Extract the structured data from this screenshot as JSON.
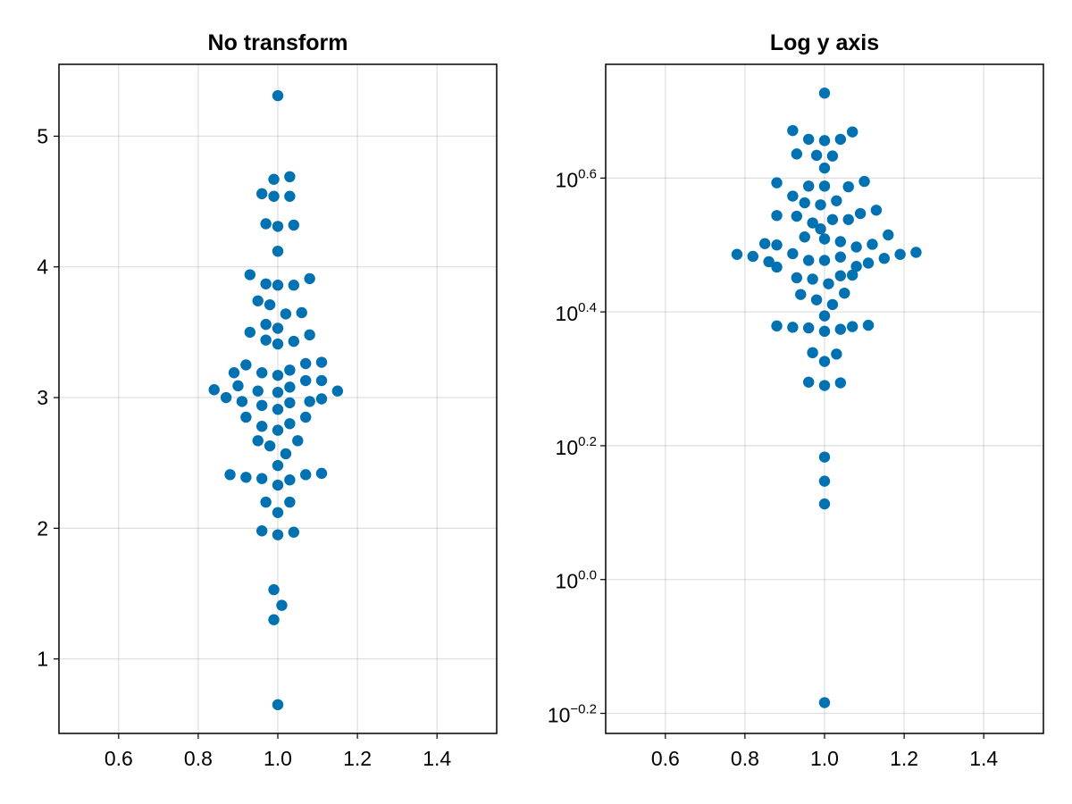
{
  "chart_data": [
    {
      "type": "scatter",
      "title": "No transform",
      "xlabel": "",
      "ylabel": "",
      "yscale": "linear",
      "xlim": [
        0.45,
        1.55
      ],
      "ylim": [
        0.43,
        5.55
      ],
      "xticks": [
        0.6,
        0.8,
        1.0,
        1.2,
        1.4
      ],
      "xtick_labels": [
        "0.6",
        "0.8",
        "1.0",
        "1.2",
        "1.4"
      ],
      "yticks": [
        1,
        2,
        3,
        4,
        5
      ],
      "ytick_labels": [
        "1",
        "2",
        "3",
        "4",
        "5"
      ],
      "grid": true,
      "marker_color": "#0072B2",
      "points": [
        [
          1.0,
          5.31
        ],
        [
          0.99,
          4.67
        ],
        [
          1.03,
          4.69
        ],
        [
          0.96,
          4.56
        ],
        [
          0.99,
          4.54
        ],
        [
          1.03,
          4.54
        ],
        [
          0.97,
          4.33
        ],
        [
          1.0,
          4.31
        ],
        [
          1.04,
          4.32
        ],
        [
          1.0,
          4.12
        ],
        [
          0.93,
          3.94
        ],
        [
          0.97,
          3.87
        ],
        [
          1.0,
          3.86
        ],
        [
          1.04,
          3.86
        ],
        [
          1.08,
          3.91
        ],
        [
          0.95,
          3.74
        ],
        [
          0.98,
          3.71
        ],
        [
          1.02,
          3.64
        ],
        [
          1.06,
          3.65
        ],
        [
          0.97,
          3.56
        ],
        [
          1.0,
          3.53
        ],
        [
          0.93,
          3.5
        ],
        [
          0.97,
          3.44
        ],
        [
          1.0,
          3.41
        ],
        [
          1.04,
          3.43
        ],
        [
          1.08,
          3.48
        ],
        [
          0.92,
          3.25
        ],
        [
          0.89,
          3.19
        ],
        [
          0.96,
          3.19
        ],
        [
          1.0,
          3.17
        ],
        [
          1.03,
          3.21
        ],
        [
          1.07,
          3.26
        ],
        [
          1.11,
          3.27
        ],
        [
          0.9,
          3.09
        ],
        [
          0.95,
          3.05
        ],
        [
          1.0,
          3.04
        ],
        [
          1.03,
          3.08
        ],
        [
          1.07,
          3.13
        ],
        [
          1.11,
          3.13
        ],
        [
          0.84,
          3.06
        ],
        [
          0.87,
          3.0
        ],
        [
          0.91,
          2.97
        ],
        [
          0.96,
          2.94
        ],
        [
          1.0,
          2.91
        ],
        [
          1.03,
          2.96
        ],
        [
          1.08,
          2.97
        ],
        [
          1.11,
          2.99
        ],
        [
          1.15,
          3.05
        ],
        [
          0.92,
          2.85
        ],
        [
          0.96,
          2.78
        ],
        [
          1.0,
          2.75
        ],
        [
          1.03,
          2.8
        ],
        [
          1.07,
          2.85
        ],
        [
          0.95,
          2.67
        ],
        [
          0.98,
          2.63
        ],
        [
          1.02,
          2.57
        ],
        [
          1.05,
          2.67
        ],
        [
          1.0,
          2.48
        ],
        [
          0.88,
          2.41
        ],
        [
          0.92,
          2.39
        ],
        [
          0.96,
          2.38
        ],
        [
          1.0,
          2.33
        ],
        [
          1.03,
          2.37
        ],
        [
          1.07,
          2.41
        ],
        [
          1.11,
          2.42
        ],
        [
          0.97,
          2.2
        ],
        [
          1.0,
          2.12
        ],
        [
          1.03,
          2.2
        ],
        [
          0.96,
          1.98
        ],
        [
          1.0,
          1.95
        ],
        [
          1.04,
          1.97
        ],
        [
          0.99,
          1.53
        ],
        [
          1.01,
          1.41
        ],
        [
          0.99,
          1.3
        ],
        [
          1.0,
          0.65
        ]
      ]
    },
    {
      "type": "scatter",
      "title": "Log y axis",
      "xlabel": "",
      "ylabel": "",
      "yscale": "log10",
      "xlim": [
        0.45,
        1.55
      ],
      "ylim_log10": [
        -0.23,
        0.77
      ],
      "xticks": [
        0.6,
        0.8,
        1.0,
        1.2,
        1.4
      ],
      "xtick_labels": [
        "0.6",
        "0.8",
        "1.0",
        "1.2",
        "1.4"
      ],
      "yticks_log10": [
        -0.2,
        0.0,
        0.2,
        0.4,
        0.6
      ],
      "ytick_labels": [
        {
          "base": "10",
          "exp": "−0.2"
        },
        {
          "base": "10",
          "exp": "0.0"
        },
        {
          "base": "10",
          "exp": "0.2"
        },
        {
          "base": "10",
          "exp": "0.4"
        },
        {
          "base": "10",
          "exp": "0.6"
        }
      ],
      "grid": true,
      "marker_color": "#0072B2",
      "points_log10": [
        [
          1.0,
          0.727
        ],
        [
          0.92,
          0.671
        ],
        [
          0.96,
          0.658
        ],
        [
          1.0,
          0.656
        ],
        [
          1.04,
          0.658
        ],
        [
          1.07,
          0.669
        ],
        [
          0.93,
          0.636
        ],
        [
          0.98,
          0.634
        ],
        [
          1.02,
          0.633
        ],
        [
          1.0,
          0.615
        ],
        [
          0.88,
          0.593
        ],
        [
          0.92,
          0.573
        ],
        [
          0.96,
          0.588
        ],
        [
          1.0,
          0.588
        ],
        [
          1.06,
          0.587
        ],
        [
          1.1,
          0.595
        ],
        [
          0.95,
          0.563
        ],
        [
          0.99,
          0.56
        ],
        [
          1.03,
          0.566
        ],
        [
          0.88,
          0.544
        ],
        [
          0.93,
          0.543
        ],
        [
          0.97,
          0.533
        ],
        [
          1.02,
          0.538
        ],
        [
          1.06,
          0.538
        ],
        [
          1.09,
          0.547
        ],
        [
          1.13,
          0.552
        ],
        [
          0.95,
          0.512
        ],
        [
          0.99,
          0.524
        ],
        [
          1.0,
          0.509
        ],
        [
          1.04,
          0.505
        ],
        [
          1.08,
          0.497
        ],
        [
          1.12,
          0.501
        ],
        [
          1.16,
          0.515
        ],
        [
          0.85,
          0.502
        ],
        [
          0.88,
          0.5
        ],
        [
          0.92,
          0.487
        ],
        [
          0.96,
          0.477
        ],
        [
          1.0,
          0.477
        ],
        [
          1.04,
          0.482
        ],
        [
          1.08,
          0.468
        ],
        [
          1.11,
          0.473
        ],
        [
          1.15,
          0.48
        ],
        [
          1.19,
          0.486
        ],
        [
          1.23,
          0.489
        ],
        [
          0.78,
          0.486
        ],
        [
          0.82,
          0.483
        ],
        [
          0.86,
          0.475
        ],
        [
          0.88,
          0.467
        ],
        [
          0.93,
          0.451
        ],
        [
          0.97,
          0.449
        ],
        [
          1.01,
          0.442
        ],
        [
          1.04,
          0.454
        ],
        [
          1.07,
          0.455
        ],
        [
          0.94,
          0.426
        ],
        [
          0.98,
          0.418
        ],
        [
          1.02,
          0.411
        ],
        [
          1.05,
          0.428
        ],
        [
          1.0,
          0.394
        ],
        [
          0.88,
          0.379
        ],
        [
          0.92,
          0.377
        ],
        [
          0.96,
          0.376
        ],
        [
          1.0,
          0.371
        ],
        [
          1.04,
          0.374
        ],
        [
          1.07,
          0.378
        ],
        [
          1.11,
          0.38
        ],
        [
          0.97,
          0.339
        ],
        [
          1.0,
          0.326
        ],
        [
          1.03,
          0.337
        ],
        [
          0.96,
          0.295
        ],
        [
          1.0,
          0.29
        ],
        [
          1.04,
          0.294
        ],
        [
          1.0,
          0.183
        ],
        [
          1.0,
          0.147
        ],
        [
          1.0,
          0.113
        ],
        [
          1.0,
          -0.184
        ]
      ]
    }
  ]
}
